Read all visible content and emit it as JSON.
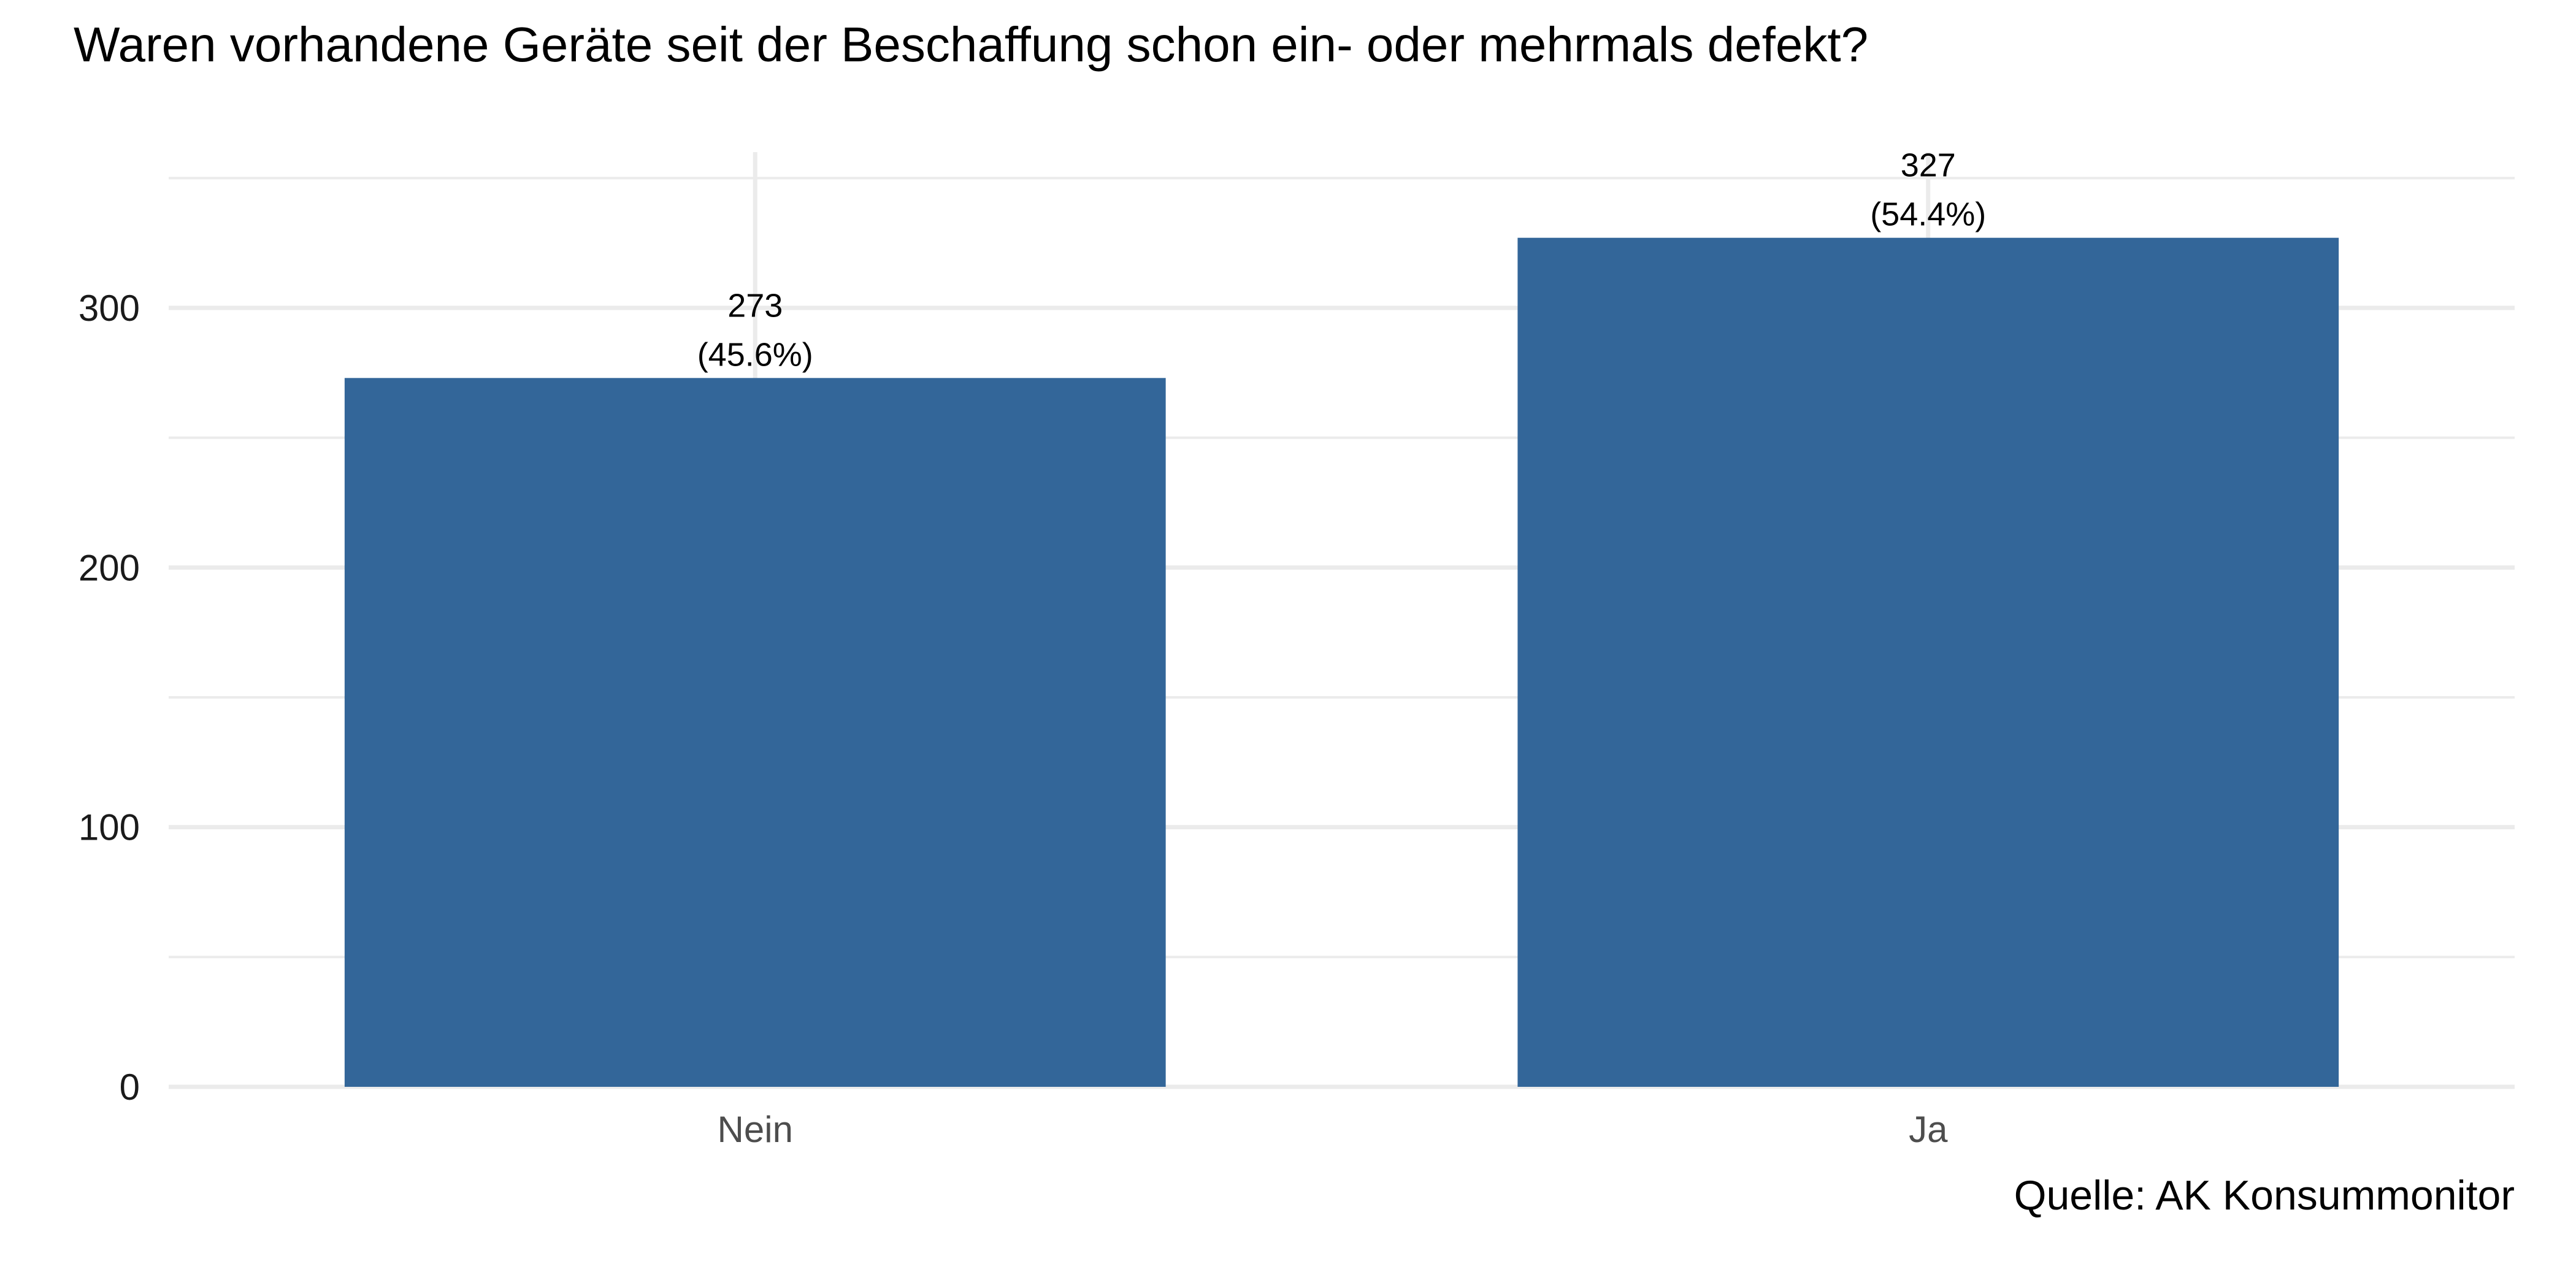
{
  "chart_data": {
    "type": "bar",
    "title": "Waren vorhandene Geräte seit der Beschaffung schon ein- oder mehrmals defekt?",
    "xlabel": "",
    "ylabel": "",
    "categories": [
      "Nein",
      "Ja"
    ],
    "values": [
      273,
      327
    ],
    "value_labels": [
      "273",
      "327"
    ],
    "percent_labels": [
      "(45.6%)",
      "(54.4%)"
    ],
    "ylim": [
      0,
      360
    ],
    "yticks": [
      0,
      100,
      200,
      300
    ],
    "ytick_labels": [
      "0",
      "100",
      "200",
      "300"
    ],
    "grid": true,
    "legend": "none",
    "bar_color": "#336699",
    "caption": "Quelle: AK Konsummonitor"
  }
}
